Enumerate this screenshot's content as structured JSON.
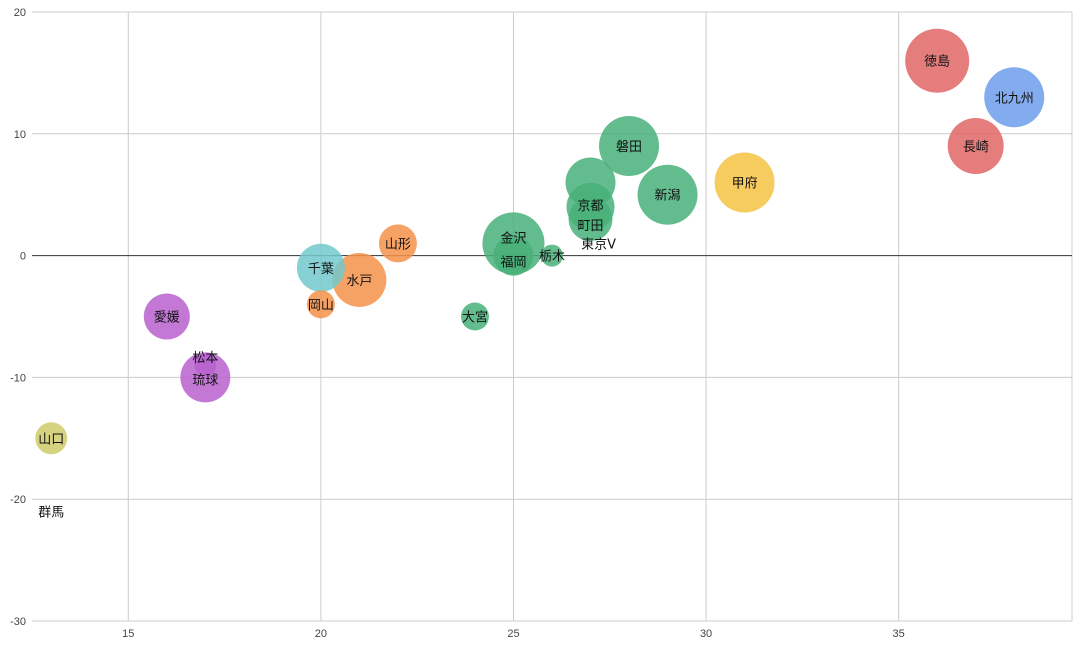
{
  "chart_data": {
    "type": "scatter",
    "subtype": "bubble",
    "title": "",
    "xlabel": "",
    "ylabel": "",
    "xlim": [
      12.5,
      39.5
    ],
    "ylim": [
      -30,
      20
    ],
    "x_ticks": [
      15,
      20,
      25,
      30,
      35
    ],
    "y_ticks": [
      -30,
      -20,
      -10,
      0,
      10,
      20
    ],
    "grid": true,
    "legend": "none",
    "colors": {
      "red": "#e06666",
      "blue": "#6d9eeb",
      "green": "#48b079",
      "yellow": "#f6c343",
      "orange": "#f6924a",
      "teal": "#72c9cc",
      "purple": "#b860cf",
      "olive": "#cfcb6a"
    },
    "points": [
      {
        "label": "徳島",
        "x": 36,
        "y": 16,
        "size": 32,
        "color": "red"
      },
      {
        "label": "北九州",
        "x": 38,
        "y": 13,
        "size": 30,
        "color": "blue"
      },
      {
        "label": "長崎",
        "x": 37,
        "y": 9,
        "size": 28,
        "color": "red"
      },
      {
        "label": "磐田",
        "x": 28,
        "y": 9,
        "size": 30,
        "color": "green"
      },
      {
        "label": "甲府",
        "x": 31,
        "y": 6,
        "size": 30,
        "color": "yellow"
      },
      {
        "label": "新潟",
        "x": 29,
        "y": 5,
        "size": 30,
        "color": "green"
      },
      {
        "label": "",
        "x": 27,
        "y": 6,
        "size": 25,
        "color": "green"
      },
      {
        "label": "京都",
        "x": 27,
        "y": 4,
        "size": 24,
        "color": "green"
      },
      {
        "label": "町田",
        "x": 27,
        "y": 3,
        "size": 22,
        "color": "green"
      },
      {
        "label": "東京V",
        "x": 27,
        "y": 1,
        "size": 0,
        "color": "green"
      },
      {
        "label": "金沢",
        "x": 25,
        "y": 1,
        "size": 31,
        "color": "green"
      },
      {
        "label": "福岡",
        "x": 25,
        "y": 0,
        "size": 20,
        "color": "green"
      },
      {
        "label": "栃木",
        "x": 26,
        "y": 0,
        "size": 11,
        "color": "green"
      },
      {
        "label": "山形",
        "x": 22,
        "y": 1,
        "size": 19,
        "color": "orange"
      },
      {
        "label": "千葉",
        "x": 20,
        "y": -1,
        "size": 24,
        "color": "teal"
      },
      {
        "label": "水戸",
        "x": 21,
        "y": -2,
        "size": 27,
        "color": "orange"
      },
      {
        "label": "岡山",
        "x": 20,
        "y": -4,
        "size": 14,
        "color": "orange"
      },
      {
        "label": "大宮",
        "x": 24,
        "y": -5,
        "size": 14,
        "color": "green"
      },
      {
        "label": "愛媛",
        "x": 16,
        "y": -5,
        "size": 23,
        "color": "purple"
      },
      {
        "label": "松本",
        "x": 17,
        "y": -9,
        "size": 11,
        "color": "purple"
      },
      {
        "label": "琉球",
        "x": 17,
        "y": -10,
        "size": 25,
        "color": "purple"
      },
      {
        "label": "山口",
        "x": 13,
        "y": -15,
        "size": 16,
        "color": "olive"
      },
      {
        "label": "群馬",
        "x": 13,
        "y": -21,
        "size": 0,
        "color": "olive"
      }
    ]
  }
}
